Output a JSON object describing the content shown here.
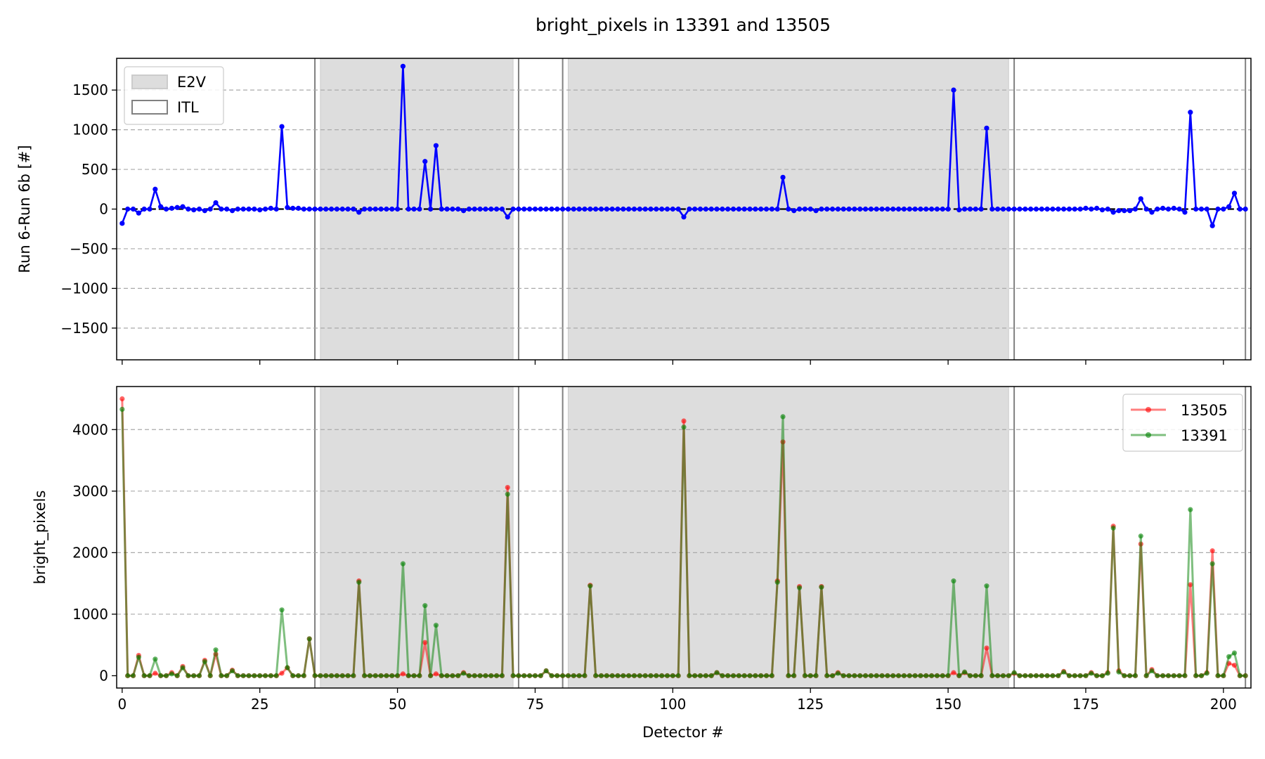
{
  "chart_data": {
    "type": "line",
    "title": "bright_pixels in 13391 and 13505",
    "xlabel": "Detector #",
    "xlim": [
      -1,
      205
    ],
    "xticks": [
      0,
      25,
      50,
      75,
      100,
      125,
      150,
      175,
      200
    ],
    "e2v_regions": [
      [
        36,
        71
      ],
      [
        81,
        161
      ]
    ],
    "vlines": [
      35,
      72,
      80,
      162,
      204
    ],
    "colors": {
      "diff": "#0000ff",
      "s13505": "#ff0000",
      "s13391": "#008000",
      "region": "#dddddd",
      "grid": "#aaaaaa",
      "vline": "#808080"
    },
    "panels": [
      {
        "name": "difference",
        "ylabel": "Run 6-Run 6b [#]",
        "ylim": [
          -1900,
          1900
        ],
        "yticks": [
          -1500,
          -1000,
          -500,
          0,
          500,
          1000,
          1500
        ],
        "legend": {
          "position": "upper-left",
          "entries": [
            {
              "label": "E2V",
              "style": "filled"
            },
            {
              "label": "ITL",
              "style": "outline"
            }
          ]
        },
        "series": [
          {
            "name": "Run 6-Run 6b",
            "color": "#0000ff",
            "spikes": [
              [
                0,
                -180
              ],
              [
                1,
                0
              ],
              [
                2,
                0
              ],
              [
                3,
                -50
              ],
              [
                4,
                0
              ],
              [
                5,
                0
              ],
              [
                6,
                250
              ],
              [
                7,
                30
              ],
              [
                8,
                0
              ],
              [
                9,
                10
              ],
              [
                10,
                20
              ],
              [
                11,
                30
              ],
              [
                12,
                0
              ],
              [
                13,
                -10
              ],
              [
                14,
                0
              ],
              [
                15,
                -20
              ],
              [
                16,
                0
              ],
              [
                17,
                80
              ],
              [
                18,
                0
              ],
              [
                19,
                0
              ],
              [
                20,
                -20
              ],
              [
                21,
                0
              ],
              [
                22,
                0
              ],
              [
                23,
                0
              ],
              [
                24,
                0
              ],
              [
                25,
                -10
              ],
              [
                26,
                0
              ],
              [
                27,
                10
              ],
              [
                28,
                0
              ],
              [
                29,
                1040
              ],
              [
                30,
                20
              ],
              [
                31,
                10
              ],
              [
                32,
                10
              ],
              [
                33,
                0
              ],
              [
                34,
                0
              ],
              [
                43,
                -40
              ],
              [
                51,
                1800
              ],
              [
                55,
                600
              ],
              [
                57,
                800
              ],
              [
                62,
                -20
              ],
              [
                70,
                -100
              ],
              [
                102,
                -100
              ],
              [
                120,
                400
              ],
              [
                122,
                -20
              ],
              [
                126,
                -20
              ],
              [
                151,
                1500
              ],
              [
                152,
                -10
              ],
              [
                157,
                1020
              ],
              [
                175,
                10
              ],
              [
                176,
                0
              ],
              [
                177,
                10
              ],
              [
                178,
                -10
              ],
              [
                179,
                0
              ],
              [
                180,
                -40
              ],
              [
                181,
                -20
              ],
              [
                182,
                -20
              ],
              [
                183,
                -20
              ],
              [
                184,
                0
              ],
              [
                185,
                130
              ],
              [
                186,
                0
              ],
              [
                187,
                -40
              ],
              [
                188,
                0
              ],
              [
                189,
                10
              ],
              [
                190,
                0
              ],
              [
                191,
                10
              ],
              [
                192,
                0
              ],
              [
                193,
                -40
              ],
              [
                194,
                1220
              ],
              [
                195,
                0
              ],
              [
                196,
                0
              ],
              [
                197,
                0
              ],
              [
                198,
                -210
              ],
              [
                199,
                0
              ],
              [
                200,
                0
              ],
              [
                201,
                30
              ],
              [
                202,
                200
              ],
              [
                203,
                0
              ],
              [
                204,
                0
              ]
            ]
          }
        ]
      },
      {
        "name": "bright_pixels",
        "ylabel": "bright_pixels",
        "ylim": [
          -200,
          4700
        ],
        "yticks": [
          0,
          1000,
          2000,
          3000,
          4000
        ],
        "legend": {
          "position": "upper-right",
          "entries": [
            {
              "label": "13505",
              "color": "#ff0000"
            },
            {
              "label": "13391",
              "color": "#008000"
            }
          ]
        },
        "series": [
          {
            "name": "13505",
            "color": "#ff0000",
            "spikes": [
              [
                0,
                4500
              ],
              [
                3,
                330
              ],
              [
                6,
                40
              ],
              [
                9,
                50
              ],
              [
                11,
                150
              ],
              [
                15,
                250
              ],
              [
                17,
                350
              ],
              [
                20,
                90
              ],
              [
                29,
                40
              ],
              [
                30,
                130
              ],
              [
                34,
                600
              ],
              [
                43,
                1540
              ],
              [
                51,
                30
              ],
              [
                55,
                540
              ],
              [
                57,
                30
              ],
              [
                62,
                50
              ],
              [
                70,
                3060
              ],
              [
                77,
                80
              ],
              [
                85,
                1470
              ],
              [
                102,
                4140
              ],
              [
                108,
                50
              ],
              [
                119,
                1540
              ],
              [
                120,
                3800
              ],
              [
                123,
                1450
              ],
              [
                127,
                1450
              ],
              [
                130,
                50
              ],
              [
                151,
                50
              ],
              [
                153,
                50
              ],
              [
                157,
                450
              ],
              [
                162,
                40
              ],
              [
                171,
                70
              ],
              [
                176,
                50
              ],
              [
                179,
                50
              ],
              [
                180,
                2430
              ],
              [
                181,
                80
              ],
              [
                185,
                2140
              ],
              [
                187,
                100
              ],
              [
                194,
                1480
              ],
              [
                197,
                50
              ],
              [
                198,
                2030
              ],
              [
                201,
                200
              ],
              [
                202,
                170
              ]
            ]
          },
          {
            "name": "13391",
            "color": "#008000",
            "spikes": [
              [
                0,
                4330
              ],
              [
                3,
                300
              ],
              [
                6,
                270
              ],
              [
                9,
                30
              ],
              [
                11,
                130
              ],
              [
                15,
                230
              ],
              [
                17,
                420
              ],
              [
                20,
                80
              ],
              [
                29,
                1070
              ],
              [
                30,
                130
              ],
              [
                34,
                600
              ],
              [
                43,
                1520
              ],
              [
                51,
                1820
              ],
              [
                55,
                1140
              ],
              [
                57,
                820
              ],
              [
                62,
                40
              ],
              [
                70,
                2950
              ],
              [
                77,
                80
              ],
              [
                85,
                1460
              ],
              [
                102,
                4040
              ],
              [
                108,
                50
              ],
              [
                119,
                1520
              ],
              [
                120,
                4210
              ],
              [
                123,
                1430
              ],
              [
                127,
                1440
              ],
              [
                130,
                40
              ],
              [
                151,
                1540
              ],
              [
                153,
                60
              ],
              [
                157,
                1460
              ],
              [
                162,
                50
              ],
              [
                171,
                60
              ],
              [
                176,
                40
              ],
              [
                179,
                40
              ],
              [
                180,
                2400
              ],
              [
                181,
                60
              ],
              [
                185,
                2270
              ],
              [
                187,
                80
              ],
              [
                194,
                2700
              ],
              [
                197,
                40
              ],
              [
                198,
                1820
              ],
              [
                201,
                310
              ],
              [
                202,
                370
              ]
            ]
          }
        ]
      }
    ]
  }
}
